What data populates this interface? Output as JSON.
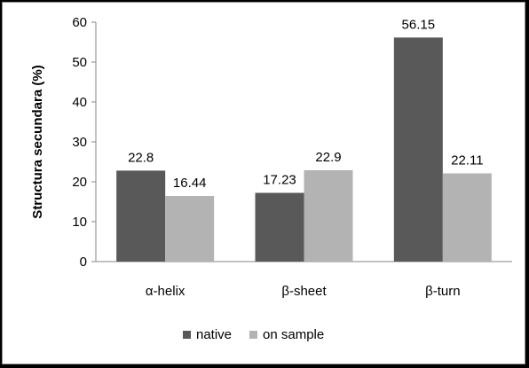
{
  "chart_data": {
    "type": "bar",
    "title": "",
    "xlabel": "",
    "ylabel": "Structura secundara (%)",
    "ylim": [
      0,
      60
    ],
    "yticks": [
      0,
      10,
      20,
      30,
      40,
      50,
      60
    ],
    "grid": false,
    "legend_position": "bottom",
    "categories": [
      "α-helix",
      "β-sheet",
      "β-turn"
    ],
    "series": [
      {
        "name": "native",
        "color": "#595959",
        "values": [
          22.8,
          17.23,
          56.15
        ],
        "labels": [
          "22.8",
          "17.23",
          "56.15"
        ]
      },
      {
        "name": "on sample",
        "color": "#b3b3b3",
        "values": [
          16.44,
          22.9,
          22.11
        ],
        "labels": [
          "16.44",
          "22.9",
          "22.11"
        ]
      }
    ]
  }
}
